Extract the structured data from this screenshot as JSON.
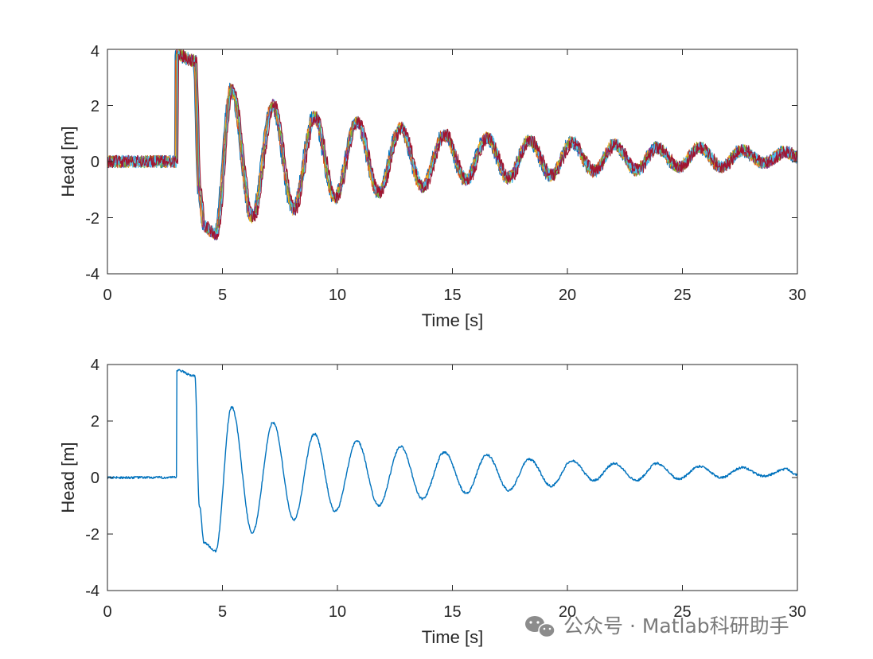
{
  "chart_data": [
    {
      "type": "line",
      "title": "",
      "xlabel": "Time [s]",
      "ylabel": "Head [m]",
      "xlim": [
        0,
        30
      ],
      "ylim": [
        -4,
        4
      ],
      "xticks": [
        "0",
        "5",
        "10",
        "15",
        "20",
        "25",
        "30"
      ],
      "yticks": [
        "-4",
        "-2",
        "0",
        "2",
        "4"
      ],
      "grid": false,
      "legend": false,
      "noise": 0.22,
      "series": [
        {
          "color": "#0072BD",
          "x": [
            0,
            3.0,
            3.01,
            3.8,
            4.0,
            4.2,
            4.7,
            5.4,
            6.3,
            7.2,
            8.1,
            9.0,
            9.9,
            10.85,
            11.8,
            12.75,
            13.7,
            14.65,
            15.6,
            16.5,
            17.45,
            18.35,
            19.3,
            20.2,
            21.15,
            22.05,
            23.0,
            23.9,
            24.85,
            25.75,
            26.7,
            27.6,
            28.55,
            29.5,
            30.0
          ],
          "y": [
            0,
            0,
            3.8,
            3.6,
            -1.0,
            -2.3,
            -2.6,
            2.6,
            -2.0,
            2.0,
            -1.7,
            1.6,
            -1.3,
            1.4,
            -1.1,
            1.2,
            -0.9,
            0.95,
            -0.65,
            0.85,
            -0.6,
            0.75,
            -0.5,
            0.7,
            -0.35,
            0.6,
            -0.3,
            0.5,
            -0.2,
            0.5,
            -0.2,
            0.4,
            -0.05,
            0.35,
            0.15
          ]
        },
        {
          "color": "#D95319",
          "x": [
            0,
            3.0,
            3.01,
            3.8,
            4.0,
            4.2,
            4.7,
            5.4,
            6.3,
            7.2,
            8.1,
            9.0,
            9.9,
            10.85,
            11.8,
            12.75,
            13.7,
            14.65,
            15.6,
            16.5,
            17.45,
            18.35,
            19.3,
            20.2,
            21.15,
            22.05,
            23.0,
            23.9,
            24.85,
            25.75,
            26.7,
            27.6,
            28.55,
            29.5,
            30.0
          ],
          "y": [
            0,
            0,
            3.8,
            3.6,
            -1.0,
            -2.3,
            -2.6,
            2.6,
            -2.0,
            2.0,
            -1.7,
            1.6,
            -1.3,
            1.4,
            -1.1,
            1.2,
            -0.9,
            0.95,
            -0.65,
            0.85,
            -0.6,
            0.75,
            -0.5,
            0.7,
            -0.35,
            0.6,
            -0.3,
            0.5,
            -0.2,
            0.5,
            -0.2,
            0.4,
            -0.05,
            0.35,
            0.15
          ]
        },
        {
          "color": "#EDB120",
          "x": [
            0,
            3.0,
            3.01,
            3.8,
            4.0,
            4.2,
            4.7,
            5.4,
            6.3,
            7.2,
            8.1,
            9.0,
            9.9,
            10.85,
            11.8,
            12.75,
            13.7,
            14.65,
            15.6,
            16.5,
            17.45,
            18.35,
            19.3,
            20.2,
            21.15,
            22.05,
            23.0,
            23.9,
            24.85,
            25.75,
            26.7,
            27.6,
            28.55,
            29.5,
            30.0
          ],
          "y": [
            0,
            0,
            3.8,
            3.6,
            -1.0,
            -2.3,
            -2.6,
            2.6,
            -2.0,
            2.0,
            -1.7,
            1.6,
            -1.3,
            1.4,
            -1.1,
            1.2,
            -0.9,
            0.95,
            -0.65,
            0.85,
            -0.6,
            0.75,
            -0.5,
            0.7,
            -0.35,
            0.6,
            -0.3,
            0.5,
            -0.2,
            0.5,
            -0.2,
            0.4,
            -0.05,
            0.35,
            0.15
          ]
        },
        {
          "color": "#7E2F8E",
          "x": [
            0,
            3.0,
            3.01,
            3.8,
            4.0,
            4.2,
            4.7,
            5.4,
            6.3,
            7.2,
            8.1,
            9.0,
            9.9,
            10.85,
            11.8,
            12.75,
            13.7,
            14.65,
            15.6,
            16.5,
            17.45,
            18.35,
            19.3,
            20.2,
            21.15,
            22.05,
            23.0,
            23.9,
            24.85,
            25.75,
            26.7,
            27.6,
            28.55,
            29.5,
            30.0
          ],
          "y": [
            0,
            0,
            3.8,
            3.6,
            -1.0,
            -2.3,
            -2.6,
            2.6,
            -2.0,
            2.0,
            -1.7,
            1.6,
            -1.3,
            1.4,
            -1.1,
            1.2,
            -0.9,
            0.95,
            -0.65,
            0.85,
            -0.6,
            0.75,
            -0.5,
            0.7,
            -0.35,
            0.6,
            -0.3,
            0.5,
            -0.2,
            0.5,
            -0.2,
            0.4,
            -0.05,
            0.35,
            0.15
          ]
        },
        {
          "color": "#77AC30",
          "x": [
            0,
            3.0,
            3.01,
            3.8,
            4.0,
            4.2,
            4.7,
            5.4,
            6.3,
            7.2,
            8.1,
            9.0,
            9.9,
            10.85,
            11.8,
            12.75,
            13.7,
            14.65,
            15.6,
            16.5,
            17.45,
            18.35,
            19.3,
            20.2,
            21.15,
            22.05,
            23.0,
            23.9,
            24.85,
            25.75,
            26.7,
            27.6,
            28.55,
            29.5,
            30.0
          ],
          "y": [
            0,
            0,
            3.8,
            3.6,
            -1.0,
            -2.3,
            -2.6,
            2.6,
            -2.0,
            2.0,
            -1.7,
            1.6,
            -1.3,
            1.4,
            -1.1,
            1.2,
            -0.9,
            0.95,
            -0.65,
            0.85,
            -0.6,
            0.75,
            -0.5,
            0.7,
            -0.35,
            0.6,
            -0.3,
            0.5,
            -0.2,
            0.5,
            -0.2,
            0.4,
            -0.05,
            0.35,
            0.15
          ]
        },
        {
          "color": "#4DBEEE",
          "x": [
            0,
            3.0,
            3.01,
            3.8,
            4.0,
            4.2,
            4.7,
            5.4,
            6.3,
            7.2,
            8.1,
            9.0,
            9.9,
            10.85,
            11.8,
            12.75,
            13.7,
            14.65,
            15.6,
            16.5,
            17.45,
            18.35,
            19.3,
            20.2,
            21.15,
            22.05,
            23.0,
            23.9,
            24.85,
            25.75,
            26.7,
            27.6,
            28.55,
            29.5,
            30.0
          ],
          "y": [
            0,
            0,
            3.8,
            3.6,
            -1.0,
            -2.3,
            -2.6,
            2.6,
            -2.0,
            2.0,
            -1.7,
            1.6,
            -1.3,
            1.4,
            -1.1,
            1.2,
            -0.9,
            0.95,
            -0.65,
            0.85,
            -0.6,
            0.75,
            -0.5,
            0.7,
            -0.35,
            0.6,
            -0.3,
            0.5,
            -0.2,
            0.5,
            -0.2,
            0.4,
            -0.05,
            0.35,
            0.15
          ]
        },
        {
          "color": "#A2142F",
          "x": [
            0,
            3.0,
            3.01,
            3.8,
            4.0,
            4.2,
            4.7,
            5.4,
            6.3,
            7.2,
            8.1,
            9.0,
            9.9,
            10.85,
            11.8,
            12.75,
            13.7,
            14.65,
            15.6,
            16.5,
            17.45,
            18.35,
            19.3,
            20.2,
            21.15,
            22.05,
            23.0,
            23.9,
            24.85,
            25.75,
            26.7,
            27.6,
            28.55,
            29.5,
            30.0
          ],
          "y": [
            0,
            0,
            3.8,
            3.6,
            -1.0,
            -2.3,
            -2.6,
            2.6,
            -2.0,
            2.0,
            -1.7,
            1.6,
            -1.3,
            1.4,
            -1.1,
            1.2,
            -0.9,
            0.95,
            -0.65,
            0.85,
            -0.6,
            0.75,
            -0.5,
            0.7,
            -0.35,
            0.6,
            -0.3,
            0.5,
            -0.2,
            0.5,
            -0.2,
            0.4,
            -0.05,
            0.35,
            0.15
          ]
        }
      ]
    },
    {
      "type": "line",
      "title": "",
      "xlabel": "Time [s]",
      "ylabel": "Head [m]",
      "xlim": [
        0,
        30
      ],
      "ylim": [
        -4,
        4
      ],
      "xticks": [
        "0",
        "5",
        "10",
        "15",
        "20",
        "25",
        "30"
      ],
      "yticks": [
        "-4",
        "-2",
        "0",
        "2",
        "4"
      ],
      "grid": false,
      "legend": false,
      "noise": 0.04,
      "series": [
        {
          "color": "#0072BD",
          "x": [
            0,
            3.0,
            3.01,
            3.8,
            4.0,
            4.2,
            4.7,
            5.4,
            6.3,
            7.2,
            8.1,
            9.0,
            9.9,
            10.85,
            11.8,
            12.75,
            13.7,
            14.65,
            15.6,
            16.5,
            17.45,
            18.35,
            19.3,
            20.2,
            21.15,
            22.05,
            23.0,
            23.9,
            24.85,
            25.75,
            26.7,
            27.6,
            28.55,
            29.5,
            30.0
          ],
          "y": [
            0,
            0,
            3.8,
            3.6,
            -1.0,
            -2.3,
            -2.6,
            2.5,
            -1.95,
            1.95,
            -1.5,
            1.55,
            -1.2,
            1.3,
            -1.0,
            1.1,
            -0.75,
            0.9,
            -0.55,
            0.8,
            -0.45,
            0.65,
            -0.3,
            0.6,
            -0.1,
            0.5,
            -0.1,
            0.5,
            -0.05,
            0.4,
            0.0,
            0.35,
            0.05,
            0.3,
            0.1
          ]
        }
      ]
    }
  ],
  "watermark": {
    "text": "公众号 · Matlab科研助手",
    "icon": "wechat-icon"
  }
}
